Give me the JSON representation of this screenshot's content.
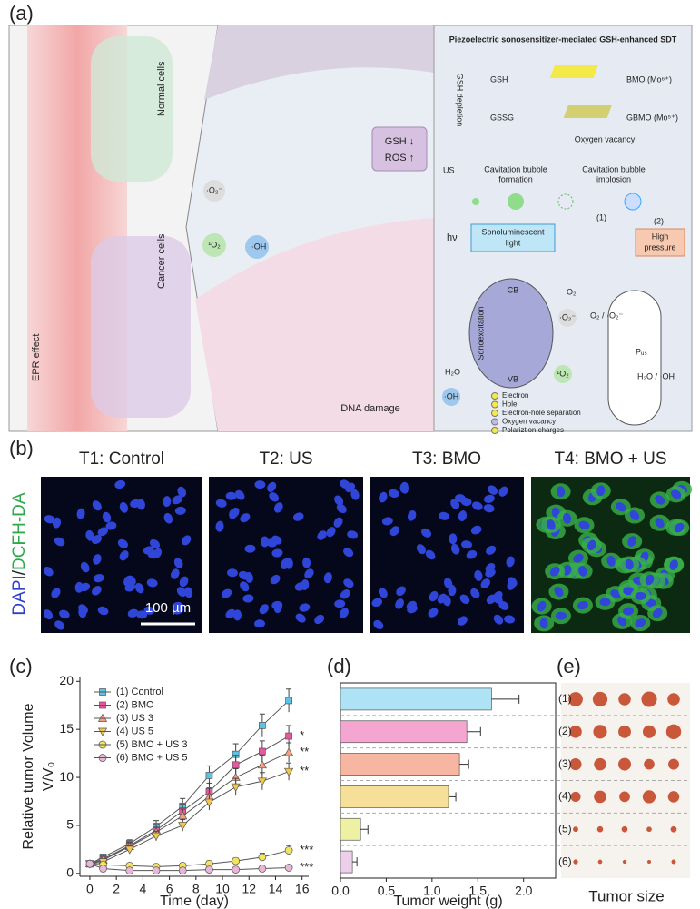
{
  "figure": {
    "panel_labels": [
      "(a)",
      "(b)",
      "(c)",
      "(d)",
      "(e)"
    ]
  },
  "panel_a": {
    "left": {
      "normal": "Normal cells",
      "cancer": "Cancer cells",
      "epr": "EPR effect"
    },
    "middle": {
      "gsh": "GSH ↓",
      "ros": "ROS ↑",
      "o2m": "·O₂⁻",
      "singlet": "¹O₂",
      "oh": "·OH",
      "dna": "DNA damage"
    },
    "right": {
      "title": "Piezoelectric sonosensitizer-mediated GSH-enhanced SDT",
      "gsh": "GSH",
      "gssg": "GSSG",
      "bmo": "BMO (Mo⁶⁺)",
      "gbmo": "GBMO (Mo⁵⁺)",
      "depletion": "GSH depletion",
      "vacancy": "Oxygen vacancy",
      "us": "US",
      "formation": [
        "Cavitation bubble",
        "formation"
      ],
      "implosion": [
        "Cavitation bubble",
        "implosion"
      ],
      "path1": "(1)",
      "path2": "(2)",
      "hv": "hν",
      "sono": [
        "Sonoluminescent",
        "light"
      ],
      "pressure": [
        "High",
        "pressure"
      ],
      "cb": "CB",
      "vb": "VB",
      "o2": "O₂",
      "o2m": "·O₂⁻",
      "singlet": "¹O₂",
      "h2o": "H₂O",
      "oh": "·OH",
      "sep": "Sonoexcitation",
      "o2pair": "O₂ / ·O₂⁻",
      "h2opair": "H₂O / ·OH",
      "pus": "Pᵤₛ",
      "legend": [
        "Electron",
        "Hole",
        "Electron-hole separation",
        "Oxygen vacancy",
        "Polariztion charges"
      ]
    }
  },
  "panel_b": {
    "titles": [
      "T1: Control",
      "T2: US",
      "T3: BMO",
      "T4: BMO + US"
    ],
    "side_label": [
      "DAPI",
      "/",
      "DCFH-DA"
    ],
    "scale": "100 µm"
  },
  "chart_data": [
    {
      "type": "line",
      "xlabel": "Time (day)",
      "ylabel": [
        "Relative tumor Volume",
        "V/V₀"
      ],
      "x": [
        0,
        1,
        3,
        5,
        7,
        9,
        11,
        13,
        15
      ],
      "xlim": [
        -0.75,
        16.5
      ],
      "ylim": [
        -0.3,
        20.5
      ],
      "xticks": [
        0,
        2,
        4,
        6,
        8,
        10,
        12,
        14,
        16
      ],
      "yticks": [
        0,
        5,
        10,
        15,
        20
      ],
      "legend": "upper left",
      "series": [
        {
          "name": "(1) Control",
          "color": "#5bc3e6",
          "marker": "square",
          "values": [
            1,
            1.7,
            3.1,
            4.9,
            7.0,
            10.2,
            12.4,
            15.4,
            18.0
          ],
          "errors": [
            0.2,
            0.3,
            0.4,
            0.6,
            0.8,
            1.0,
            1.1,
            1.2,
            1.2
          ]
        },
        {
          "name": "(2) BMO",
          "color": "#e8589e",
          "marker": "square",
          "values": [
            1,
            1.5,
            2.9,
            4.5,
            6.5,
            8.5,
            11.3,
            12.7,
            14.3
          ],
          "errors": [
            0.2,
            0.3,
            0.4,
            0.6,
            0.7,
            0.9,
            1.0,
            1.1,
            1.1
          ],
          "annotation": "*"
        },
        {
          "name": "(3) US 3",
          "color": "#f4a07e",
          "marker": "triangle-up",
          "values": [
            1,
            1.4,
            2.8,
            4.3,
            6.0,
            8.0,
            10.0,
            11.3,
            12.6
          ],
          "errors": [
            0.2,
            0.3,
            0.4,
            0.5,
            0.7,
            0.9,
            0.9,
            1.0,
            1.0
          ],
          "annotation": "**"
        },
        {
          "name": "(4) US 5",
          "color": "#f2c84b",
          "marker": "triangle-down",
          "values": [
            1,
            1.2,
            2.5,
            3.9,
            5.0,
            7.4,
            9.0,
            9.6,
            10.6
          ],
          "errors": [
            0.2,
            0.3,
            0.4,
            0.5,
            0.6,
            0.8,
            0.9,
            0.9,
            0.9
          ],
          "annotation": "**"
        },
        {
          "name": "(5) BMO + US 3",
          "color": "#f3e45e",
          "marker": "circle",
          "values": [
            1,
            0.9,
            0.8,
            0.7,
            0.8,
            1.0,
            1.3,
            1.7,
            2.4
          ],
          "errors": [
            0.2,
            0.2,
            0.2,
            0.2,
            0.2,
            0.3,
            0.3,
            0.4,
            0.5
          ],
          "annotation": "***"
        },
        {
          "name": "(6) BMO + US 5",
          "color": "#e9b6d9",
          "marker": "circle",
          "values": [
            1,
            0.5,
            0.3,
            0.3,
            0.3,
            0.4,
            0.4,
            0.5,
            0.6
          ],
          "errors": [
            0.2,
            0.1,
            0.1,
            0.1,
            0.1,
            0.1,
            0.1,
            0.1,
            0.2
          ],
          "annotation": "***"
        }
      ]
    },
    {
      "type": "bar",
      "orientation": "horizontal",
      "xlabel": "Tumor weight (g)",
      "categories": [
        "(1)",
        "(2)",
        "(3)",
        "(4)",
        "(5)",
        "(6)"
      ],
      "values": [
        1.65,
        1.38,
        1.3,
        1.18,
        0.22,
        0.13
      ],
      "errors": [
        0.3,
        0.15,
        0.1,
        0.08,
        0.08,
        0.05
      ],
      "colors": [
        "#aee3f5",
        "#f4a6d0",
        "#f7b6a2",
        "#f6df98",
        "#eef0a3",
        "#ecd0ea"
      ],
      "xlim": [
        0,
        2.35
      ],
      "xticks": [
        {
          "value": 0,
          "label": "0.0"
        },
        {
          "value": 0.5,
          "label": "0.5"
        },
        {
          "value": 1,
          "label": "1.0"
        },
        {
          "value": 1.5,
          "label": "1.5"
        },
        {
          "value": 2,
          "label": "2.0"
        }
      ]
    }
  ],
  "panel_e": {
    "label": "Tumor size"
  }
}
